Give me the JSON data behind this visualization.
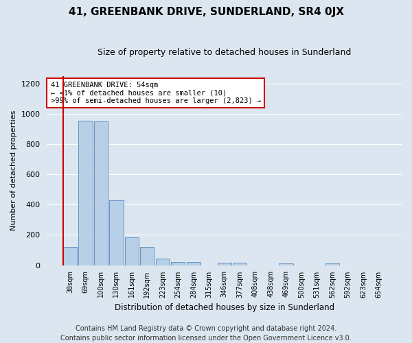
{
  "title": "41, GREENBANK DRIVE, SUNDERLAND, SR4 0JX",
  "subtitle": "Size of property relative to detached houses in Sunderland",
  "xlabel": "Distribution of detached houses by size in Sunderland",
  "ylabel": "Number of detached properties",
  "categories": [
    "38sqm",
    "69sqm",
    "100sqm",
    "130sqm",
    "161sqm",
    "192sqm",
    "223sqm",
    "254sqm",
    "284sqm",
    "315sqm",
    "346sqm",
    "377sqm",
    "408sqm",
    "438sqm",
    "469sqm",
    "500sqm",
    "531sqm",
    "562sqm",
    "592sqm",
    "623sqm",
    "654sqm"
  ],
  "values": [
    120,
    955,
    950,
    430,
    185,
    120,
    45,
    22,
    22,
    0,
    18,
    18,
    0,
    0,
    10,
    0,
    0,
    10,
    0,
    0,
    0
  ],
  "bar_color": "#b8cfe8",
  "bar_edge_color": "#5588bb",
  "highlight_line_color": "#cc0000",
  "annotation_text": "41 GREENBANK DRIVE: 54sqm\n← <1% of detached houses are smaller (10)\n>99% of semi-detached houses are larger (2,823) →",
  "annotation_box_facecolor": "#ffffff",
  "annotation_box_edgecolor": "#cc0000",
  "ylim": [
    0,
    1250
  ],
  "yticks": [
    0,
    200,
    400,
    600,
    800,
    1000,
    1200
  ],
  "footer_line1": "Contains HM Land Registry data © Crown copyright and database right 2024.",
  "footer_line2": "Contains public sector information licensed under the Open Government Licence v3.0.",
  "background_color": "#dce6f0",
  "plot_background_color": "#dce6f0",
  "grid_color": "#ffffff",
  "title_fontsize": 11,
  "subtitle_fontsize": 9,
  "footer_fontsize": 7
}
